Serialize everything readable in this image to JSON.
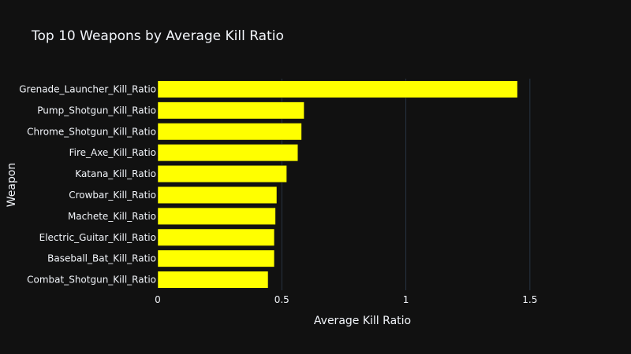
{
  "chart_data": {
    "type": "bar",
    "orientation": "horizontal",
    "title": "Top 10 Weapons by Average Kill Ratio",
    "xlabel": "Average Kill Ratio",
    "ylabel": "Weapon",
    "xlim": [
      0,
      1.65
    ],
    "x_ticks": [
      0,
      0.5,
      1,
      1.5
    ],
    "x_tick_labels": [
      "0",
      "0.5",
      "1",
      "1.5"
    ],
    "grid": true,
    "categories": [
      "Grenade_Launcher_Kill_Ratio",
      "Pump_Shotgun_Kill_Ratio",
      "Chrome_Shotgun_Kill_Ratio",
      "Fire_Axe_Kill_Ratio",
      "Katana_Kill_Ratio",
      "Crowbar_Kill_Ratio",
      "Machete_Kill_Ratio",
      "Electric_Guitar_Kill_Ratio",
      "Baseball_Bat_Kill_Ratio",
      "Combat_Shotgun_Kill_Ratio"
    ],
    "values": [
      1.45,
      0.59,
      0.58,
      0.565,
      0.52,
      0.48,
      0.475,
      0.47,
      0.47,
      0.445
    ],
    "bar_color": "#ffff00",
    "background_color": "#111111",
    "grid_color": "#283442",
    "text_color": "#f2f5fa"
  }
}
